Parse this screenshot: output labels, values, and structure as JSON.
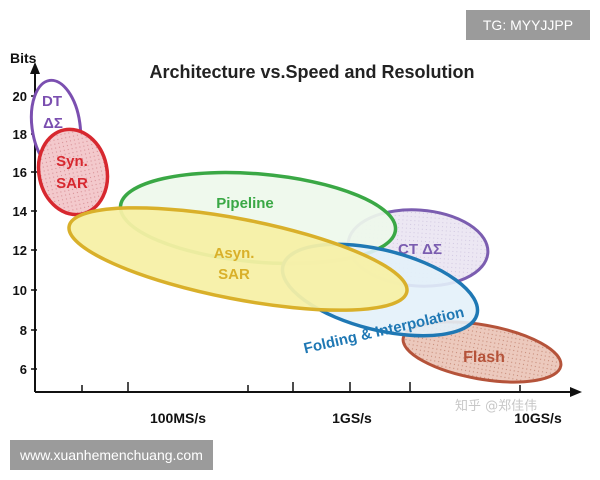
{
  "title": "Architecture vs.Speed and Resolution",
  "y_axis_label": "Bits",
  "y_ticks": [
    "20",
    "18",
    "16",
    "14",
    "12",
    "10",
    "8",
    "6"
  ],
  "x_ticks": [
    "100MS/s",
    "1GS/s",
    "10GS/s"
  ],
  "regions": {
    "dt": {
      "line1": "DT",
      "line2": "ΔΣ",
      "color": "#7b4fb0"
    },
    "syn_sar": {
      "line1": "Syn.",
      "line2": "SAR",
      "color": "#d7282f"
    },
    "pipeline": {
      "label": "Pipeline",
      "color": "#3aa845"
    },
    "ct": {
      "label": "CT ΔΣ",
      "color": "#7b5db0"
    },
    "asyn_sar": {
      "line1": "Asyn.",
      "line2": "SAR",
      "color": "#d9b02a"
    },
    "folding": {
      "label": "Folding & Interpolation",
      "color": "#1f78b4"
    },
    "flash": {
      "label": "Flash",
      "color": "#b5533a"
    }
  },
  "watermarks": {
    "tg": "TG: MYYJJPP",
    "site": "www.xuanhemenchuang.com",
    "zhihu": "知乎 @郑佳伟"
  }
}
